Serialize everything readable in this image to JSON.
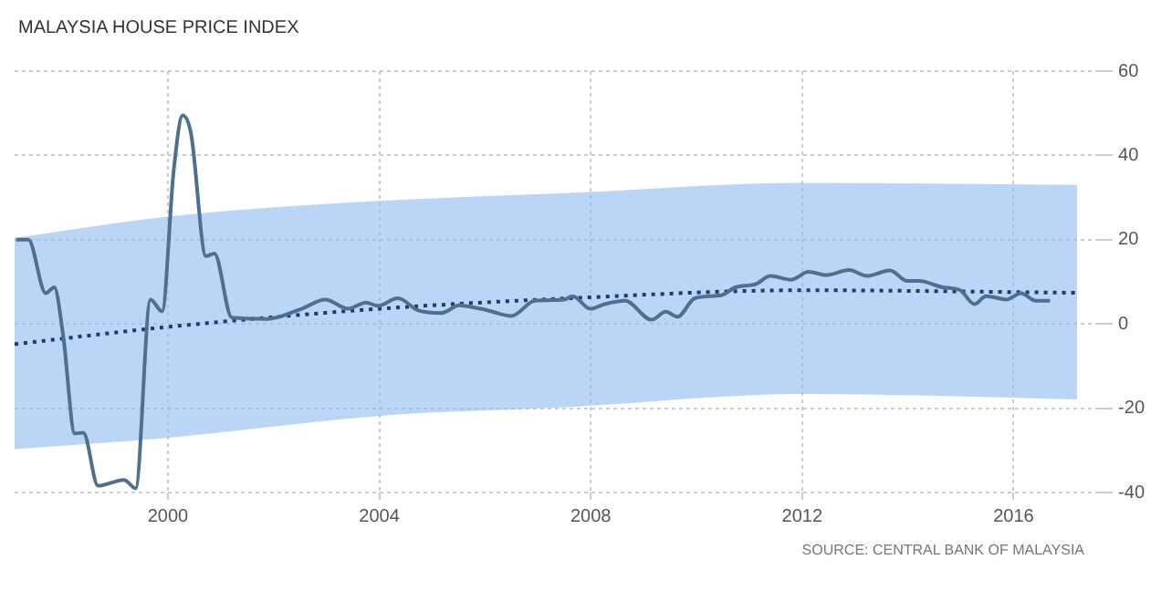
{
  "chart_data": {
    "type": "line",
    "title": "MALAYSIA HOUSE PRICE INDEX",
    "annotations": [
      "SOURCE: CENTRAL BANK OF MALAYSIA"
    ],
    "xlim": [
      1997.1,
      2017.6
    ],
    "xticks": [
      2000,
      2004,
      2008,
      2012,
      2016
    ],
    "ylim": [
      -40,
      60
    ],
    "yticks": [
      -40,
      -20,
      0,
      20,
      40,
      60
    ],
    "grid": true,
    "legend": false,
    "marker": "none",
    "series": [
      {
        "color": "#4f6f8f",
        "x": [
          1997.13,
          1997.36,
          1997.69,
          1997.85,
          1998.02,
          1998.24,
          1998.4,
          1998.68,
          1999.17,
          1999.39,
          1999.67,
          1999.89,
          2000.11,
          2000.28,
          2000.44,
          2000.72,
          2000.88,
          2001.21,
          2001.87,
          2002.53,
          2002.98,
          2003.41,
          2003.75,
          2003.97,
          2004.35,
          2004.74,
          2005.18,
          2005.51,
          2006.06,
          2006.5,
          2006.94,
          2007.5,
          2007.66,
          2007.99,
          2008.26,
          2008.65,
          2009.15,
          2009.42,
          2009.64,
          2009.97,
          2010.47,
          2010.74,
          2011.13,
          2011.4,
          2011.79,
          2012.12,
          2012.45,
          2012.89,
          2013.22,
          2013.66,
          2013.99,
          2014.21,
          2014.66,
          2014.99,
          2015.26,
          2015.48,
          2015.87,
          2016.14,
          2016.42,
          2016.69
        ],
        "values": [
          20,
          20,
          7.3,
          8.7,
          -2.9,
          -26,
          -25.8,
          -38.4,
          -37,
          -39,
          5.8,
          3,
          36.4,
          49.5,
          45,
          16.1,
          16.7,
          1.5,
          1.2,
          3.6,
          5.8,
          3.6,
          5.1,
          4.3,
          6.1,
          3.2,
          2.6,
          4.4,
          3.2,
          1.9,
          5.5,
          5.8,
          6.6,
          3.6,
          4.7,
          5.5,
          1,
          2.9,
          1.7,
          6.1,
          6.8,
          8.7,
          9.5,
          11.4,
          10.5,
          12.4,
          11.6,
          12.8,
          11.4,
          12.7,
          10.2,
          10.2,
          8.7,
          8,
          4.7,
          6.6,
          5.8,
          7.3,
          5.5,
          5.5
        ]
      },
      {
        "color": "#1f3a6b",
        "line_style": "dotted",
        "x": [
          1997.1,
          2000,
          2004,
          2007.6,
          2012,
          2017.2
        ],
        "values": [
          -4.8,
          -0.7,
          3.6,
          6.1,
          8,
          7.4
        ],
        "lower": [
          -29.7,
          -27,
          -21.8,
          -19.7,
          -16.6,
          -17.9
        ],
        "upper": [
          20.4,
          25.5,
          29.2,
          31.1,
          33.5,
          33
        ]
      }
    ]
  }
}
